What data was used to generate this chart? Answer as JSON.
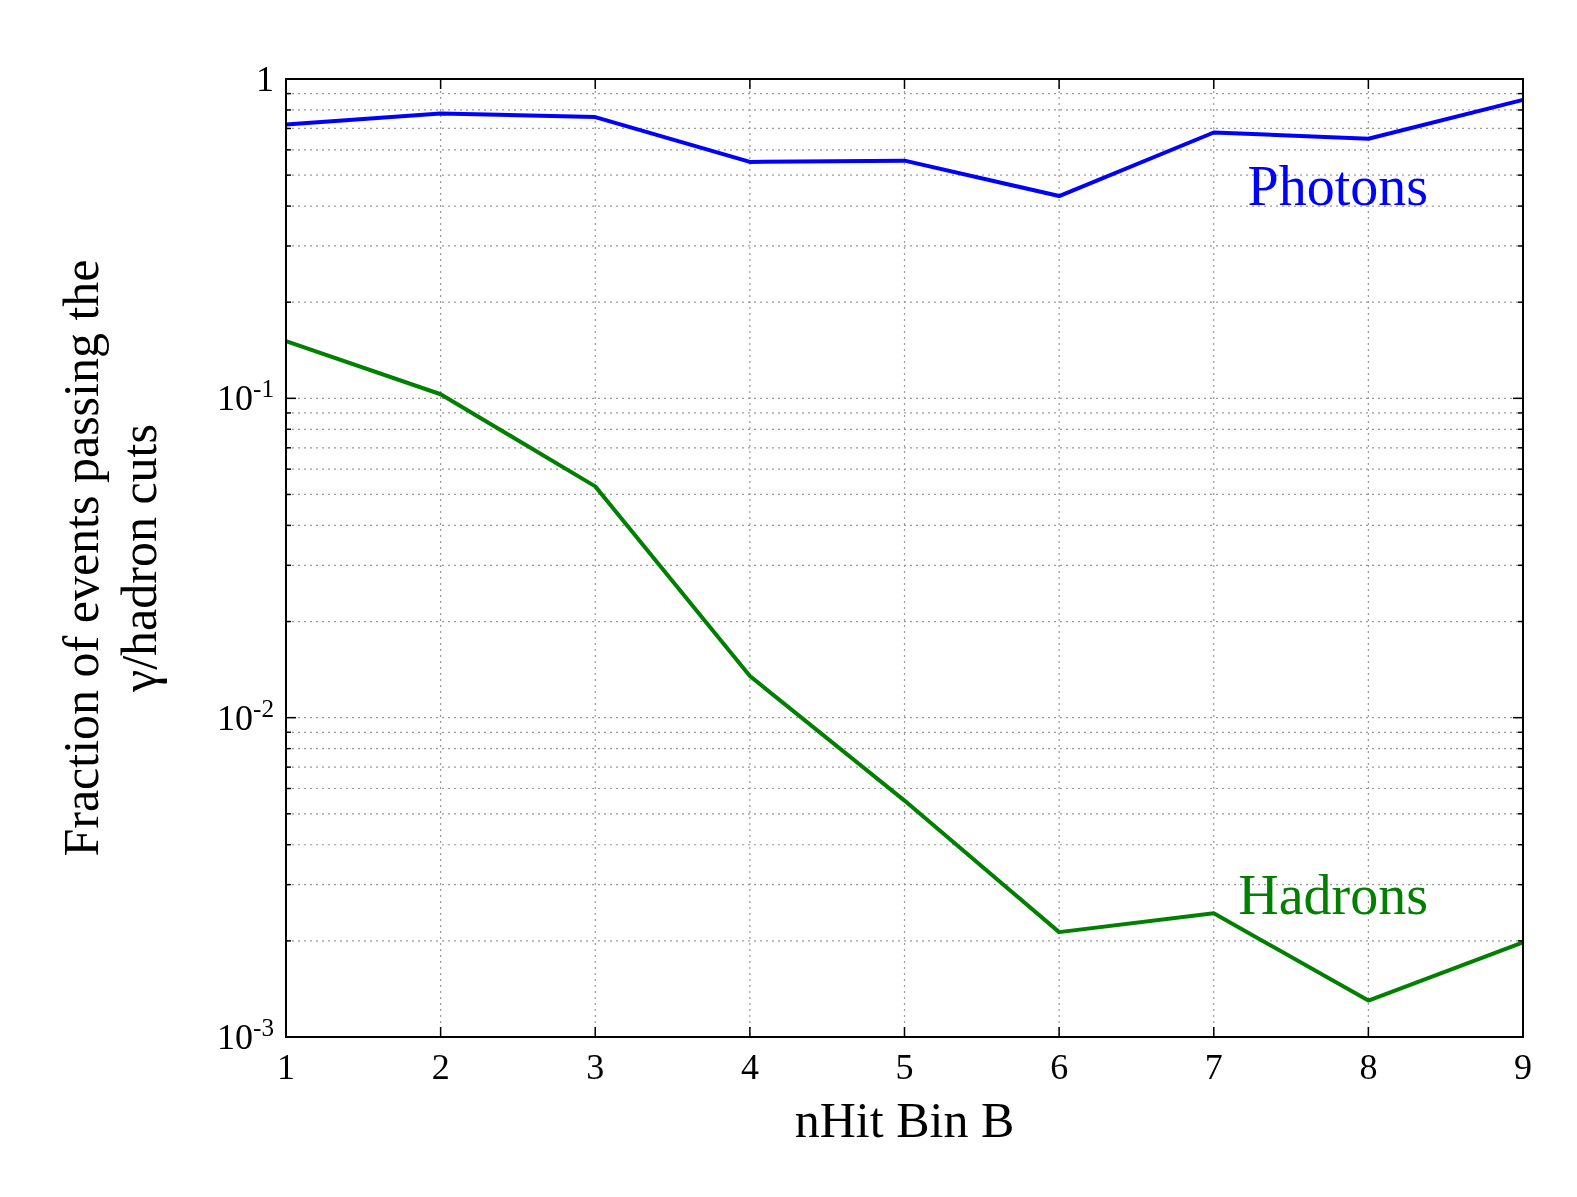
{
  "chart_data": {
    "type": "line",
    "xlabel": "nHit Bin B",
    "ylabel": "Fraction of events passing the\nγ/hadron cuts",
    "x": [
      1,
      2,
      3,
      4,
      5,
      6,
      7,
      8,
      9
    ],
    "series": [
      {
        "name": "Photons",
        "color": "#0000ff",
        "values": [
          0.72,
          0.78,
          0.76,
          0.55,
          0.555,
          0.43,
          0.68,
          0.65,
          0.86
        ]
      },
      {
        "name": "Hadrons",
        "color": "#007f00",
        "values": [
          0.151,
          0.103,
          0.053,
          0.0135,
          0.0055,
          0.00213,
          0.00244,
          0.0013,
          0.00198
        ]
      }
    ],
    "log": "y",
    "xlim": [
      1,
      9
    ],
    "xticks": [
      1,
      2,
      3,
      4,
      5,
      6,
      7,
      8,
      9
    ],
    "ylim": [
      0.001,
      1
    ],
    "yticks": [
      {
        "value": 0.001,
        "label": "10$^{-3}$"
      },
      {
        "value": 0.01,
        "label": "10$^{-2}$"
      },
      {
        "value": 0.1,
        "label": "10$^{-1}$"
      },
      1
    ],
    "grid": true,
    "legend": false,
    "marker": "none",
    "line_style": "solid"
  }
}
